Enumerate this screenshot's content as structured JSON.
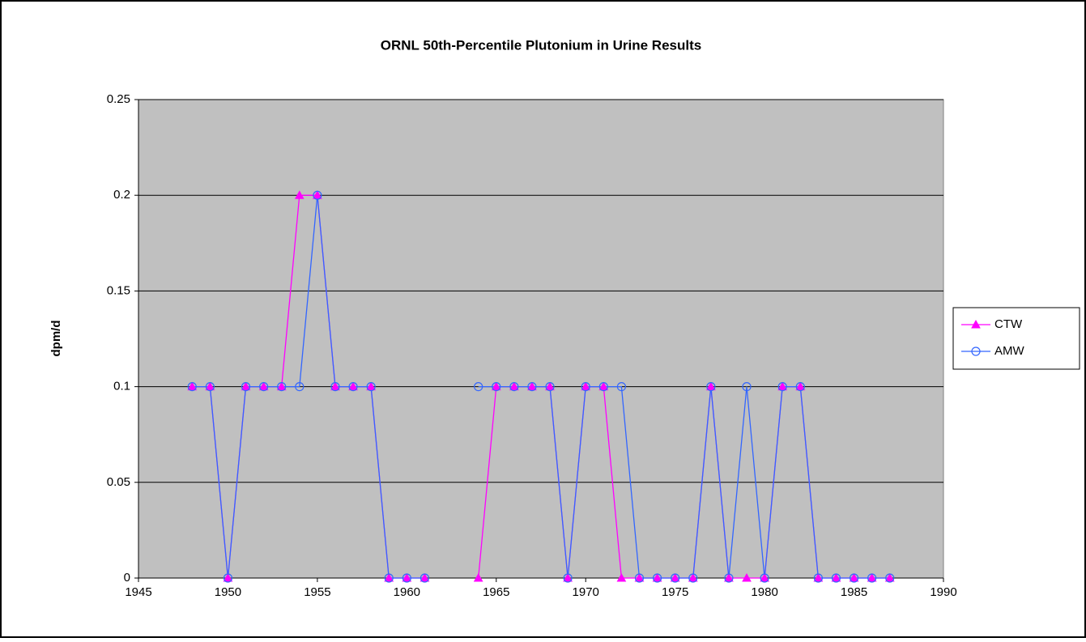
{
  "chart_data": {
    "type": "line",
    "title": "ORNL 50th-Percentile Plutonium in Urine Results",
    "y_label": "dpm/d",
    "x": [
      1948,
      1949,
      1950,
      1951,
      1952,
      1953,
      1954,
      1955,
      1956,
      1957,
      1958,
      1959,
      1960,
      1961,
      1962,
      1963,
      1964,
      1965,
      1966,
      1967,
      1968,
      1969,
      1970,
      1971,
      1972,
      1973,
      1974,
      1975,
      1976,
      1977,
      1978,
      1979,
      1980,
      1981,
      1982,
      1983,
      1984,
      1985,
      1986,
      1987
    ],
    "series": [
      {
        "name": "CTW",
        "color": "#ff00ff",
        "marker": "triangle",
        "values": [
          0.1,
          0.1,
          0,
          0.1,
          0.1,
          0.1,
          0.2,
          0.2,
          0.1,
          0.1,
          0.1,
          0,
          0,
          0,
          null,
          null,
          0,
          0.1,
          0.1,
          0.1,
          0.1,
          0,
          0.1,
          0.1,
          0,
          0,
          0,
          0,
          0,
          0.1,
          0,
          0,
          0,
          0.1,
          0.1,
          0,
          0,
          0,
          0,
          0
        ]
      },
      {
        "name": "AMW",
        "color": "#3366ff",
        "marker": "circle",
        "values": [
          0.1,
          0.1,
          0,
          0.1,
          0.1,
          0.1,
          0.1,
          0.2,
          0.1,
          0.1,
          0.1,
          0,
          0,
          0,
          null,
          null,
          0.1,
          0.1,
          0.1,
          0.1,
          0.1,
          0,
          0.1,
          0.1,
          0.1,
          0,
          0,
          0,
          0,
          0.1,
          0,
          0.1,
          0,
          0.1,
          0.1,
          0,
          0,
          0,
          0,
          0
        ]
      }
    ],
    "xlim": [
      1945,
      1990
    ],
    "xticks": [
      1945,
      1950,
      1955,
      1960,
      1965,
      1970,
      1975,
      1980,
      1985,
      1990
    ],
    "ylim": [
      0,
      0.25
    ],
    "yticks": [
      0,
      0.05,
      0.1,
      0.15,
      0.2,
      0.25
    ],
    "grid": true,
    "legend": "right"
  }
}
